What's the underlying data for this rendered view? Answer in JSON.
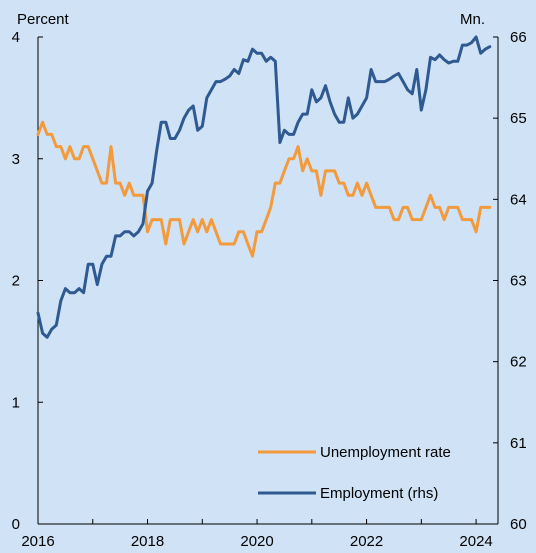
{
  "chart_data": {
    "type": "line",
    "left_axis_unit": "Percent",
    "right_axis_unit": "Mn.",
    "left_ylim": [
      0,
      4
    ],
    "left_yticks": [
      0,
      1,
      2,
      3,
      4
    ],
    "right_ylim": [
      60,
      66
    ],
    "right_yticks": [
      60,
      61,
      62,
      63,
      64,
      65,
      66
    ],
    "xlim": [
      2016.0,
      2024.4
    ],
    "xtick_labels": [
      "2016",
      "2018",
      "2020",
      "2022",
      "2024"
    ],
    "xtick_label_years": [
      2016,
      2018,
      2020,
      2022,
      2024
    ],
    "xtick_marks": [
      2016,
      2017,
      2018,
      2019,
      2020,
      2021,
      2022,
      2023,
      2024
    ],
    "grid": false,
    "legend_position": "bottom-right",
    "colors": {
      "background": "#d0e2f5",
      "unemployment": "#f39a3c",
      "employment": "#2e5a91"
    },
    "series": [
      {
        "name": "Unemployment rate",
        "axis": "left",
        "start": "2016-01",
        "frequency": "monthly",
        "values": [
          3.2,
          3.3,
          3.2,
          3.2,
          3.1,
          3.1,
          3.0,
          3.1,
          3.0,
          3.0,
          3.1,
          3.1,
          3.0,
          2.9,
          2.8,
          2.8,
          3.1,
          2.8,
          2.8,
          2.7,
          2.8,
          2.7,
          2.7,
          2.7,
          2.4,
          2.5,
          2.5,
          2.5,
          2.3,
          2.5,
          2.5,
          2.5,
          2.3,
          2.4,
          2.5,
          2.4,
          2.5,
          2.4,
          2.5,
          2.4,
          2.3,
          2.3,
          2.3,
          2.3,
          2.4,
          2.4,
          2.3,
          2.2,
          2.4,
          2.4,
          2.5,
          2.6,
          2.8,
          2.8,
          2.9,
          3.0,
          3.0,
          3.1,
          2.9,
          3.0,
          2.9,
          2.9,
          2.7,
          2.9,
          2.9,
          2.9,
          2.8,
          2.8,
          2.7,
          2.7,
          2.8,
          2.7,
          2.8,
          2.7,
          2.6,
          2.6,
          2.6,
          2.6,
          2.5,
          2.5,
          2.6,
          2.6,
          2.5,
          2.5,
          2.5,
          2.6,
          2.7,
          2.6,
          2.6,
          2.5,
          2.6,
          2.6,
          2.6,
          2.5,
          2.5,
          2.5,
          2.4,
          2.6,
          2.6,
          2.6
        ]
      },
      {
        "name": "Employment (rhs)",
        "axis": "right",
        "start": "2016-01",
        "frequency": "monthly",
        "values": [
          62.6,
          62.35,
          62.3,
          62.4,
          62.45,
          62.75,
          62.9,
          62.85,
          62.85,
          62.9,
          62.85,
          63.2,
          63.2,
          62.95,
          63.2,
          63.3,
          63.3,
          63.55,
          63.55,
          63.6,
          63.6,
          63.55,
          63.6,
          63.7,
          64.1,
          64.2,
          64.6,
          64.95,
          64.95,
          64.75,
          64.75,
          64.85,
          65.0,
          65.1,
          65.15,
          64.85,
          64.9,
          65.25,
          65.35,
          65.45,
          65.45,
          65.48,
          65.52,
          65.6,
          65.55,
          65.72,
          65.7,
          65.85,
          65.8,
          65.8,
          65.7,
          65.75,
          65.7,
          64.7,
          64.85,
          64.8,
          64.8,
          64.95,
          65.05,
          65.05,
          65.35,
          65.2,
          65.25,
          65.4,
          65.2,
          65.05,
          64.95,
          64.95,
          65.25,
          65.0,
          65.05,
          65.15,
          65.25,
          65.6,
          65.45,
          65.45,
          65.45,
          65.48,
          65.52,
          65.55,
          65.45,
          65.35,
          65.3,
          65.6,
          65.1,
          65.35,
          65.75,
          65.72,
          65.78,
          65.72,
          65.68,
          65.7,
          65.7,
          65.9,
          65.9,
          65.93,
          66.0,
          65.8,
          65.85,
          65.88
        ]
      }
    ]
  }
}
